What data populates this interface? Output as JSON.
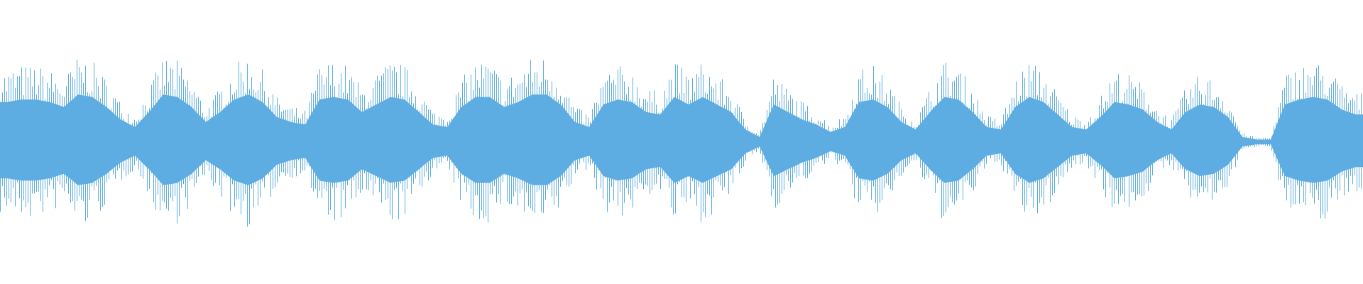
{
  "chart_data": {
    "type": "area",
    "title": "",
    "xlabel": "",
    "ylabel": "",
    "ylim": [
      -1,
      1
    ],
    "grid": false,
    "color": "#5dade2",
    "envelope": [
      0.8,
      0.85,
      0.85,
      0.8,
      0.7,
      0.95,
      0.9,
      0.7,
      0.45,
      0.3,
      0.6,
      0.95,
      0.9,
      0.7,
      0.4,
      0.6,
      0.85,
      0.95,
      0.8,
      0.5,
      0.4,
      0.35,
      0.85,
      0.9,
      0.85,
      0.6,
      0.75,
      0.9,
      0.85,
      0.6,
      0.35,
      0.3,
      0.7,
      0.9,
      0.9,
      0.7,
      0.8,
      0.95,
      0.95,
      0.75,
      0.4,
      0.3,
      0.75,
      0.85,
      0.8,
      0.6,
      0.55,
      0.9,
      0.75,
      0.9,
      0.75,
      0.6,
      0.25,
      0.1,
      0.75,
      0.6,
      0.45,
      0.35,
      0.2,
      0.3,
      0.8,
      0.85,
      0.7,
      0.4,
      0.25,
      0.6,
      0.9,
      0.85,
      0.6,
      0.3,
      0.25,
      0.7,
      0.9,
      0.8,
      0.55,
      0.3,
      0.25,
      0.5,
      0.8,
      0.75,
      0.65,
      0.4,
      0.25,
      0.6,
      0.75,
      0.7,
      0.5,
      0.1,
      0.05,
      0.05,
      0.75,
      0.85,
      0.9,
      0.85,
      0.65,
      0.55
    ]
  }
}
